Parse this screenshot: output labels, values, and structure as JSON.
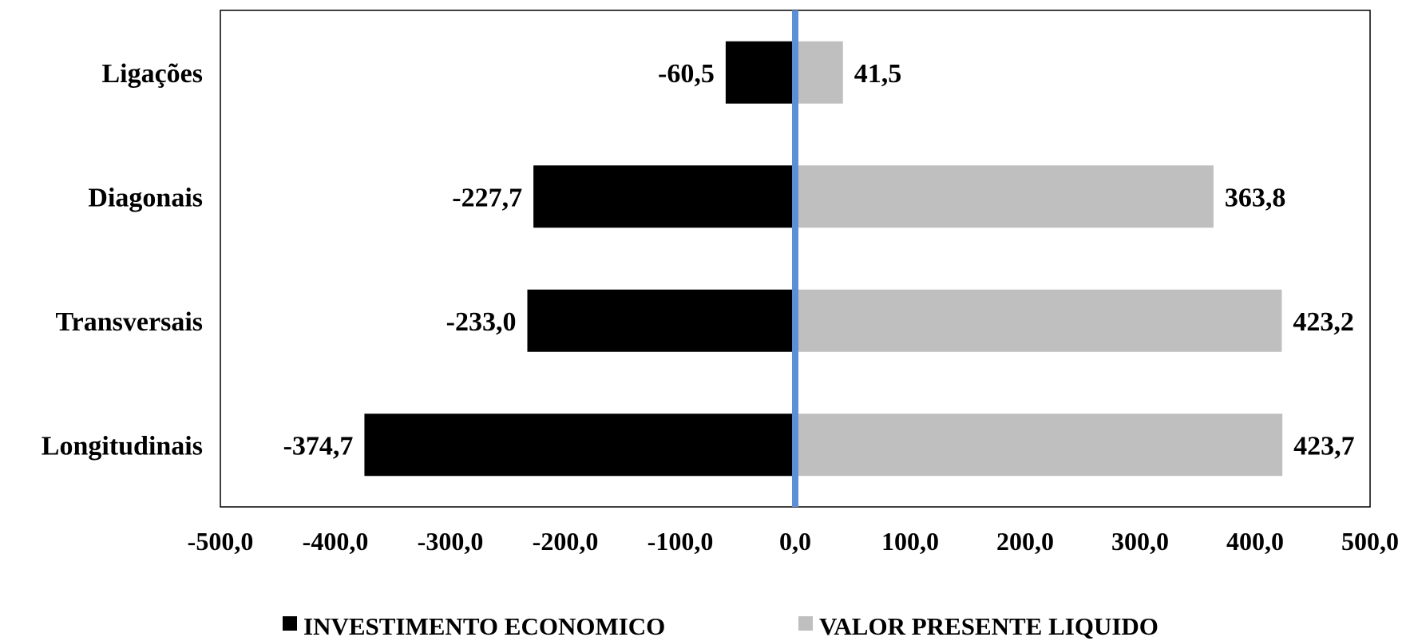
{
  "chart_data": {
    "type": "bar",
    "orientation": "horizontal",
    "categories": [
      "Ligações",
      "Diagonais",
      "Transversais",
      "Longitudinais"
    ],
    "series": [
      {
        "name": "INVESTIMENTO ECONOMICO",
        "color": "#000000",
        "values": [
          -60.5,
          -227.7,
          -233.0,
          -374.7
        ],
        "labels": [
          "-60,5",
          "-227,7",
          "-233,0",
          "-374,7"
        ]
      },
      {
        "name": "VALOR PRESENTE LIQUIDO",
        "color": "#bfbfbf",
        "values": [
          41.5,
          363.8,
          423.2,
          423.7
        ],
        "labels": [
          "41,5",
          "363,8",
          "423,2",
          "423,7"
        ]
      }
    ],
    "xlim": [
      -500,
      500
    ],
    "xticks": [
      -500,
      -400,
      -300,
      -200,
      -100,
      0,
      100,
      200,
      300,
      400,
      500
    ],
    "xtick_labels": [
      "-500,0",
      "-400,0",
      "-300,0",
      "-200,0",
      "-100,0",
      "0,0",
      "100,0",
      "200,0",
      "300,0",
      "400,0",
      "500,0"
    ],
    "zero_line_color": "#5b8fd6",
    "grid": false,
    "legend_position": "bottom",
    "title": "",
    "xlabel": "",
    "ylabel": ""
  }
}
